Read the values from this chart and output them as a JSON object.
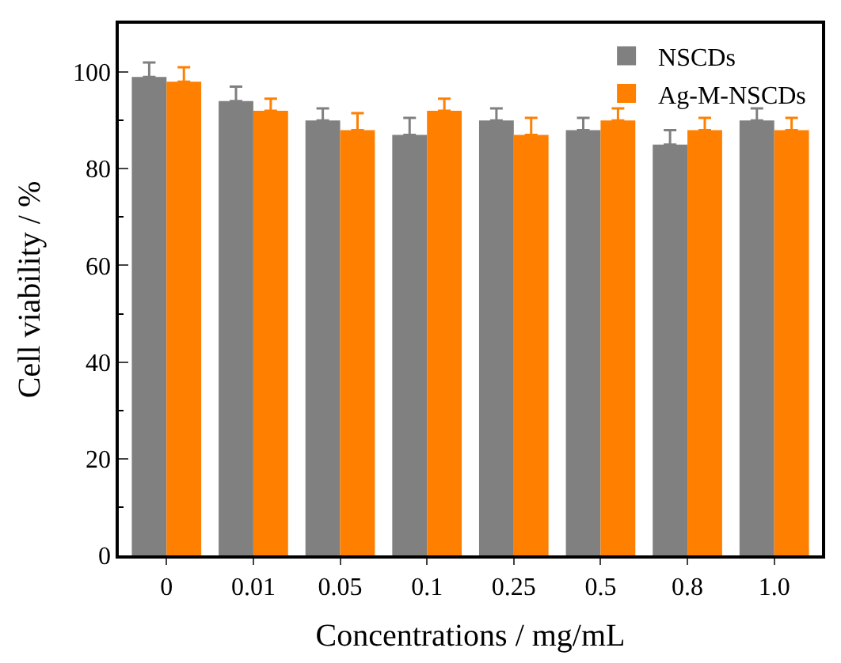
{
  "chart_data": {
    "type": "bar",
    "xlabel": "Concentrations / mg/mL",
    "ylabel": "Cell viability / %",
    "categories": [
      "0",
      "0.01",
      "0.05",
      "0.1",
      "0.25",
      "0.5",
      "0.8",
      "1.0"
    ],
    "series": [
      {
        "name": "NSCDs",
        "color": "#808080",
        "values": [
          99,
          94,
          90,
          87,
          90,
          88,
          85,
          90
        ],
        "errors": [
          [
            99,
            102
          ],
          [
            94,
            97
          ],
          [
            90,
            92.5
          ],
          [
            87,
            90.5
          ],
          [
            90,
            92.5
          ],
          [
            88,
            90.5
          ],
          [
            85,
            88
          ],
          [
            90,
            92.5
          ]
        ]
      },
      {
        "name": "Ag-M-NSCDs",
        "color": "#ff8000",
        "values": [
          98,
          92,
          88,
          92,
          87,
          90,
          88,
          88
        ],
        "errors": [
          [
            98,
            101
          ],
          [
            92,
            94.5
          ],
          [
            88,
            91.5
          ],
          [
            92,
            94.5
          ],
          [
            87,
            90.5
          ],
          [
            90,
            92.5
          ],
          [
            88,
            90.5
          ],
          [
            88,
            90.5
          ]
        ]
      }
    ],
    "ylim": [
      0,
      110
    ],
    "yticks": [
      0,
      20,
      40,
      60,
      80,
      100
    ],
    "legend": "top right"
  }
}
